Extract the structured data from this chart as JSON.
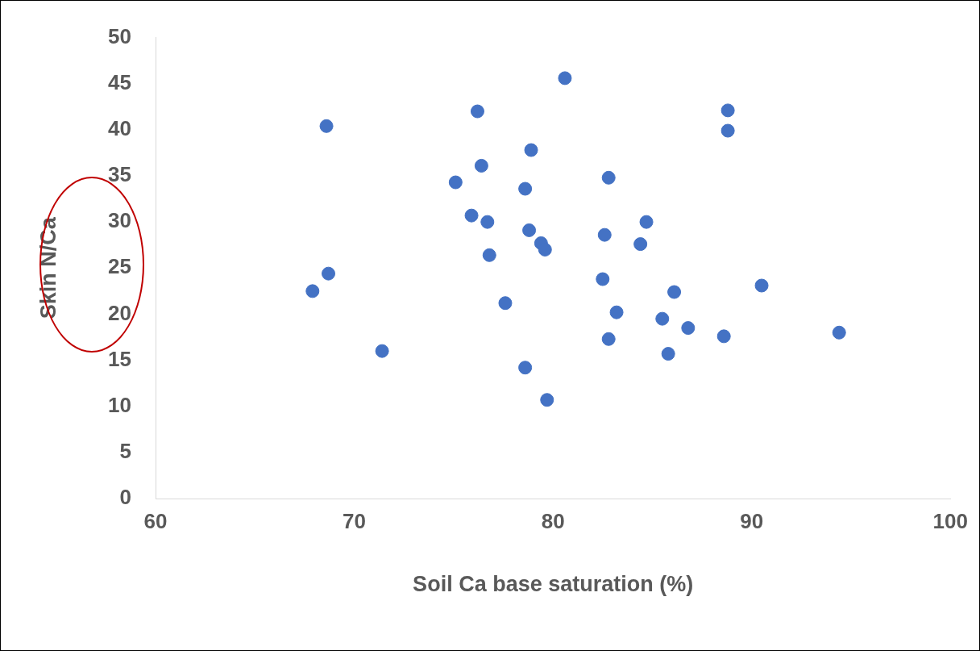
{
  "chart_data": {
    "type": "scatter",
    "xlabel": "Soil Ca base saturation (%)",
    "ylabel": "Skin N/Ca",
    "xlim": [
      60,
      100
    ],
    "xticks": [
      60,
      70,
      80,
      90,
      100
    ],
    "ylim": [
      0,
      50
    ],
    "yticks": [
      0,
      5,
      10,
      15,
      20,
      25,
      30,
      35,
      40,
      45,
      50
    ],
    "grid": false,
    "legend": false,
    "marker": "circle",
    "series": [
      {
        "color": "#4472c4",
        "x": [
          68.6,
          68.7,
          67.9,
          71.4,
          75.1,
          75.9,
          76.2,
          76.4,
          76.7,
          76.8,
          77.6,
          78.6,
          78.6,
          78.8,
          78.9,
          79.4,
          79.6,
          79.7,
          80.6,
          82.5,
          82.6,
          82.8,
          82.8,
          83.2,
          84.4,
          84.7,
          85.5,
          85.8,
          86.1,
          86.8,
          88.6,
          88.8,
          88.8,
          90.5,
          94.4
        ],
        "values": [
          40.4,
          24.4,
          22.5,
          16.0,
          34.3,
          30.7,
          42.0,
          36.1,
          30.0,
          26.4,
          21.2,
          14.2,
          33.6,
          29.1,
          37.8,
          27.7,
          27.0,
          10.7,
          45.6,
          23.8,
          28.6,
          17.3,
          34.8,
          20.2,
          27.6,
          30.0,
          19.5,
          15.7,
          22.4,
          18.5,
          17.6,
          42.1,
          39.9,
          23.1,
          18.0
        ]
      }
    ]
  }
}
